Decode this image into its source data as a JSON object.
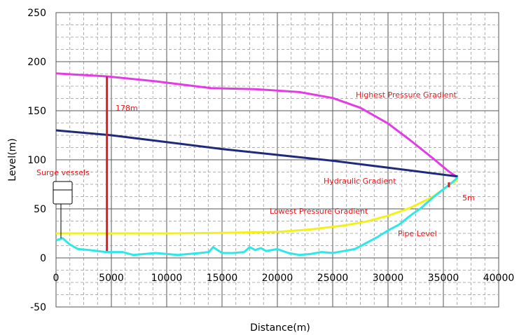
{
  "chart_data": {
    "type": "line",
    "title": "",
    "xlabel": "Distance(m)",
    "ylabel": "Level(m)",
    "xlim": [
      0,
      40000
    ],
    "ylim": [
      -50,
      250
    ],
    "grid": true,
    "x_ticks": [
      "0",
      "5000",
      "10000",
      "15000",
      "20000",
      "25000",
      "30000",
      "35000",
      "40000"
    ],
    "y_ticks": [
      "250",
      "200",
      "150",
      "100",
      "50",
      "0",
      "-50"
    ],
    "series": [
      {
        "name": "Highest Pressure Gradient",
        "color": "#e43ce4",
        "x": [
          0,
          4600,
          9000,
          14000,
          18000,
          22000,
          25000,
          27500,
          30000,
          32000,
          34000,
          35500,
          36300
        ],
        "y": [
          188,
          185,
          180,
          173,
          172,
          169,
          163,
          153,
          137,
          120,
          102,
          88,
          82
        ]
      },
      {
        "name": "Hydraulic Gradient",
        "color": "#1f2a7a",
        "x": [
          0,
          5000,
          10000,
          15000,
          20000,
          25000,
          30000,
          36300
        ],
        "y": [
          130,
          125,
          118,
          111,
          105,
          99,
          92,
          83
        ]
      },
      {
        "name": "Lowest Pressure Gradient",
        "color": "#f2f21a",
        "x": [
          0,
          5000,
          10000,
          15000,
          20000,
          23000,
          26000,
          28000,
          30000,
          32000,
          34000,
          35500,
          36300
        ],
        "y": [
          25,
          25,
          25,
          25.5,
          26.5,
          29,
          33,
          37,
          43,
          51,
          62,
          74,
          80
        ]
      },
      {
        "name": "Pipe Level",
        "color": "#2ee8e8",
        "x": [
          0,
          600,
          1200,
          2000,
          3000,
          4500,
          6000,
          7000,
          8000,
          9000,
          10000,
          11000,
          12000,
          13000,
          13800,
          14200,
          15000,
          16000,
          17000,
          17500,
          18000,
          18500,
          19000,
          20000,
          21000,
          22000,
          23000,
          24000,
          25000,
          26000,
          27000,
          28000,
          29000,
          30000,
          31000,
          32000,
          33000,
          34000,
          35000,
          35800,
          36300
        ],
        "y": [
          18,
          20,
          14,
          9,
          8,
          6,
          6,
          3,
          4,
          5,
          4,
          3,
          4,
          5,
          6,
          11,
          5,
          5,
          6,
          11,
          8,
          10,
          7,
          9,
          5,
          3,
          4,
          6,
          5,
          7,
          9,
          15,
          21,
          28,
          34,
          43,
          51,
          61,
          70,
          77,
          82
        ]
      }
    ],
    "markers": {
      "head_178": {
        "label": "178m",
        "x": 4600,
        "y_from": 7,
        "y_to": 185
      },
      "head_5": {
        "label": "5m",
        "x": 35500,
        "y_from": 72,
        "y_to": 77
      }
    },
    "annotations": {
      "surge": "Surge vessels",
      "highest": "Highest Pressure Gradient",
      "hydraulic": "Hydraulic Gradient",
      "lowest": "Lowest Pressure Gradient",
      "pipe": "Pipe Level"
    }
  }
}
